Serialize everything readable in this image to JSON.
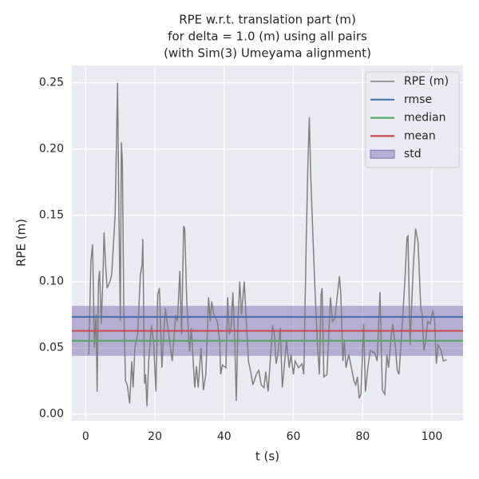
{
  "chart_data": {
    "type": "line",
    "title": [
      "RPE w.r.t. translation part (m)",
      "for delta = 1.0 (m) using all pairs",
      "(with Sim(3) Umeyama alignment)"
    ],
    "xlabel": "t (s)",
    "ylabel": "RPE (m)",
    "xlim": [
      -4,
      109
    ],
    "ylim": [
      -0.005,
      0.263
    ],
    "xticks": [
      0,
      20,
      40,
      60,
      80,
      100
    ],
    "yticks": [
      {
        "value": 0,
        "label": "0.00"
      },
      {
        "value": 0.05,
        "label": "0.05"
      },
      {
        "value": 0.1,
        "label": "0.10"
      },
      {
        "value": 0.15,
        "label": "0.15"
      },
      {
        "value": 0.2,
        "label": "0.20"
      },
      {
        "value": 0.25,
        "label": "0.25"
      }
    ],
    "grid": true,
    "legend": "upper right",
    "x": [
      0.9,
      1.5,
      2,
      2.5,
      3,
      3.3,
      3.7,
      4,
      4.5,
      5,
      5.3,
      5.8,
      6.2,
      7,
      7.5,
      8.5,
      9.2,
      9.6,
      10,
      10.3,
      10.6,
      11,
      11.5,
      12,
      12.7,
      13.3,
      13.7,
      14.2,
      15,
      15.8,
      16.3,
      16.5,
      17,
      17.3,
      17.7,
      18.2,
      19,
      19.6,
      20.3,
      20.8,
      21.3,
      22,
      23,
      24,
      25,
      26,
      26.5,
      27.2,
      27.7,
      28.3,
      28.6,
      29.2,
      30,
      30.5,
      31.5,
      32,
      32.5,
      33.3,
      34,
      34.7,
      35.5,
      36,
      36.4,
      37,
      38,
      38.7,
      39,
      39.5,
      40.5,
      41,
      41.5,
      42,
      42.5,
      43,
      43.5,
      44,
      44.5,
      45,
      45.8,
      46.5,
      47,
      47.8,
      48.3,
      49.3,
      50,
      50.7,
      51.5,
      52,
      52.7,
      53.3,
      54,
      54.5,
      55,
      55.5,
      56.2,
      56.8,
      57.5,
      58,
      58.8,
      59.3,
      60,
      60.5,
      61.5,
      62.5,
      63,
      63.7,
      64.2,
      64.6,
      65,
      65.7,
      66.3,
      67,
      67.5,
      68,
      68.3,
      68.8,
      69.7,
      70.7,
      71.3,
      72,
      72.7,
      73.3,
      73.7,
      74.3,
      74.7,
      75.2,
      76,
      77.5,
      78,
      78.5,
      79,
      79.5,
      80.3,
      80.8,
      81.5,
      82.2,
      83.5,
      84.2,
      85,
      85.7,
      86.4,
      87,
      87.5,
      88.3,
      88.7,
      89.5,
      90,
      90.5,
      91.5,
      92.3,
      92.8,
      93.1,
      93.7,
      94.6,
      95.3,
      96,
      96.8,
      97.2,
      97.7,
      98.2,
      98.8,
      99.5,
      100.3,
      100.8,
      101.3,
      101.8,
      102.7,
      103.3,
      104.3
    ],
    "series": [
      {
        "name": "RPE (m)",
        "color": "#808080",
        "values": [
          0.045,
          0.115,
          0.128,
          0.05,
          0.075,
          0.017,
          0.1,
          0.108,
          0.068,
          0.105,
          0.137,
          0.11,
          0.095,
          0.1,
          0.105,
          0.15,
          0.25,
          0.15,
          0.07,
          0.205,
          0.19,
          0.08,
          0.025,
          0.022,
          0.008,
          0.04,
          0.02,
          0.05,
          0.06,
          0.105,
          0.113,
          0.132,
          0.023,
          0.03,
          0.006,
          0.04,
          0.067,
          0.055,
          0.017,
          0.09,
          0.095,
          0.035,
          0.08,
          0.06,
          0.04,
          0.075,
          0.07,
          0.108,
          0.06,
          0.142,
          0.14,
          0.085,
          0.047,
          0.065,
          0.02,
          0.036,
          0.02,
          0.05,
          0.018,
          0.03,
          0.088,
          0.07,
          0.085,
          0.075,
          0.07,
          0.055,
          0.03,
          0.037,
          0.035,
          0.088,
          0.06,
          0.065,
          0.092,
          0.06,
          0.01,
          0.07,
          0.1,
          0.075,
          0.1,
          0.065,
          0.04,
          0.03,
          0.022,
          0.03,
          0.033,
          0.022,
          0.02,
          0.032,
          0.017,
          0.04,
          0.067,
          0.06,
          0.038,
          0.045,
          0.065,
          0.02,
          0.04,
          0.055,
          0.035,
          0.045,
          0.03,
          0.04,
          0.035,
          0.038,
          0.03,
          0.13,
          0.19,
          0.224,
          0.18,
          0.13,
          0.09,
          0.05,
          0.03,
          0.09,
          0.095,
          0.028,
          0.03,
          0.088,
          0.07,
          0.072,
          0.09,
          0.104,
          0.09,
          0.04,
          0.056,
          0.035,
          0.045,
          0.025,
          0.022,
          0.028,
          0.012,
          0.015,
          0.068,
          0.017,
          0.035,
          0.048,
          0.046,
          0.04,
          0.092,
          0.018,
          0.015,
          0.045,
          0.035,
          0.06,
          0.068,
          0.05,
          0.033,
          0.03,
          0.07,
          0.105,
          0.133,
          0.135,
          0.052,
          0.11,
          0.14,
          0.13,
          0.08,
          0.075,
          0.048,
          0.055,
          0.07,
          0.068,
          0.078,
          0.07,
          0.038,
          0.052,
          0.048,
          0.04,
          0.041
        ]
      }
    ],
    "stats": [
      {
        "name": "rmse",
        "color": "#4c72b0",
        "value": 0.0733
      },
      {
        "name": "median",
        "color": "#55a868",
        "value": 0.0553
      },
      {
        "name": "mean",
        "color": "#c44e52",
        "value": 0.0628
      }
    ],
    "band": {
      "name": "std",
      "color": "#8172b2",
      "value": 0.0189
    }
  }
}
